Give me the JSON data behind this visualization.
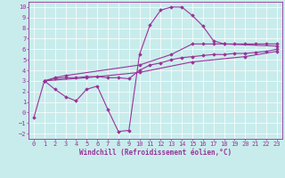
{
  "background_color": "#c8ecec",
  "line_color": "#993399",
  "marker": "D",
  "markersize": 1.8,
  "linewidth": 0.8,
  "xlabel": "Windchill (Refroidissement éolien,°C)",
  "xlabel_fontsize": 5.5,
  "tick_fontsize": 5.0,
  "xlim": [
    -0.5,
    23.5
  ],
  "ylim": [
    -2.5,
    10.5
  ],
  "xticks": [
    0,
    1,
    2,
    3,
    4,
    5,
    6,
    7,
    8,
    9,
    10,
    11,
    12,
    13,
    14,
    15,
    16,
    17,
    18,
    19,
    20,
    21,
    22,
    23
  ],
  "yticks": [
    -2,
    -1,
    0,
    1,
    2,
    3,
    4,
    5,
    6,
    7,
    8,
    9,
    10
  ],
  "series1": [
    [
      0,
      -0.5
    ],
    [
      1,
      3.0
    ],
    [
      2,
      2.2
    ],
    [
      3,
      1.5
    ],
    [
      4,
      1.1
    ],
    [
      5,
      2.2
    ],
    [
      6,
      2.5
    ],
    [
      7,
      0.3
    ],
    [
      8,
      -1.8
    ],
    [
      9,
      -1.7
    ],
    [
      10,
      5.5
    ],
    [
      11,
      8.3
    ],
    [
      12,
      9.7
    ],
    [
      13,
      10.0
    ],
    [
      14,
      10.0
    ],
    [
      15,
      9.2
    ],
    [
      16,
      8.2
    ],
    [
      17,
      6.8
    ],
    [
      18,
      6.5
    ],
    [
      23,
      6.3
    ]
  ],
  "series2": [
    [
      1,
      3.0
    ],
    [
      2,
      3.3
    ],
    [
      3,
      3.5
    ],
    [
      10,
      4.5
    ],
    [
      13,
      5.5
    ],
    [
      15,
      6.5
    ],
    [
      16,
      6.5
    ],
    [
      17,
      6.5
    ],
    [
      18,
      6.5
    ],
    [
      19,
      6.5
    ],
    [
      20,
      6.5
    ],
    [
      21,
      6.5
    ],
    [
      22,
      6.5
    ],
    [
      23,
      6.5
    ]
  ],
  "series3": [
    [
      1,
      3.0
    ],
    [
      2,
      3.2
    ],
    [
      3,
      3.3
    ],
    [
      4,
      3.3
    ],
    [
      5,
      3.4
    ],
    [
      6,
      3.4
    ],
    [
      7,
      3.3
    ],
    [
      8,
      3.3
    ],
    [
      9,
      3.2
    ],
    [
      10,
      4.0
    ],
    [
      11,
      4.5
    ],
    [
      12,
      4.7
    ],
    [
      13,
      5.0
    ],
    [
      14,
      5.2
    ],
    [
      15,
      5.3
    ],
    [
      16,
      5.4
    ],
    [
      17,
      5.5
    ],
    [
      18,
      5.5
    ],
    [
      19,
      5.6
    ],
    [
      20,
      5.6
    ],
    [
      21,
      5.7
    ],
    [
      22,
      5.8
    ],
    [
      23,
      6.0
    ]
  ],
  "series4": [
    [
      1,
      3.0
    ],
    [
      5,
      3.3
    ],
    [
      10,
      3.8
    ],
    [
      15,
      4.8
    ],
    [
      20,
      5.3
    ],
    [
      23,
      5.8
    ]
  ]
}
